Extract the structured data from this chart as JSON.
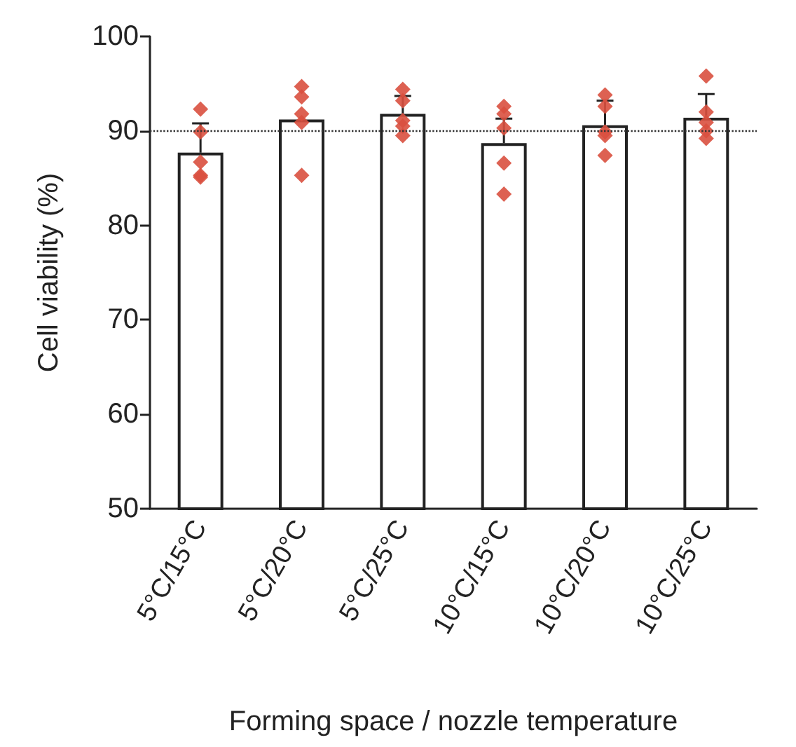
{
  "chart_data": {
    "type": "bar",
    "xlabel": "Forming space / nozzle temperature",
    "ylabel": "Cell viability (%)",
    "categories": [
      "5°C/15°C",
      "5°C/20°C",
      "5°C/25°C",
      "10°C/15°C",
      "10°C/20°C",
      "10°C/25°C"
    ],
    "series": [
      {
        "color": "#ffffff",
        "values": [
          87.7,
          91.2,
          91.8,
          88.7,
          90.6,
          91.4
        ],
        "errors": [
          3.1,
          null,
          1.9,
          2.6,
          2.6,
          2.5
        ]
      },
      {
        "type": "scatter",
        "color": "#d9503f",
        "marker": "diamond",
        "x": [
          "5°C/15°C",
          "5°C/15°C",
          "5°C/15°C",
          "5°C/15°C",
          "5°C/15°C",
          "5°C/20°C",
          "5°C/20°C",
          "5°C/20°C",
          "5°C/20°C",
          "5°C/20°C",
          "5°C/25°C",
          "5°C/25°C",
          "5°C/25°C",
          "5°C/25°C",
          "5°C/25°C",
          "10°C/15°C",
          "10°C/15°C",
          "10°C/15°C",
          "10°C/15°C",
          "10°C/15°C",
          "10°C/20°C",
          "10°C/20°C",
          "10°C/20°C",
          "10°C/20°C",
          "10°C/20°C",
          "10°C/25°C",
          "10°C/25°C",
          "10°C/25°C",
          "10°C/25°C",
          "10°C/25°C"
        ],
        "values": [
          92.3,
          89.9,
          86.7,
          85.3,
          85.1,
          94.7,
          93.6,
          91.8,
          90.9,
          85.3,
          94.4,
          93.2,
          91.1,
          90.5,
          89.5,
          92.6,
          91.8,
          90.3,
          86.6,
          83.3,
          93.8,
          92.6,
          89.9,
          89.5,
          87.4,
          95.8,
          92.0,
          90.9,
          90.0,
          89.2
        ]
      }
    ],
    "ylim": [
      50,
      100
    ],
    "yticks": [
      50,
      60,
      70,
      80,
      90,
      100
    ],
    "grid": false,
    "ref_lines": [
      {
        "axis": "y",
        "value": 90,
        "line_style": "dotted",
        "color": "#333333"
      }
    ]
  }
}
